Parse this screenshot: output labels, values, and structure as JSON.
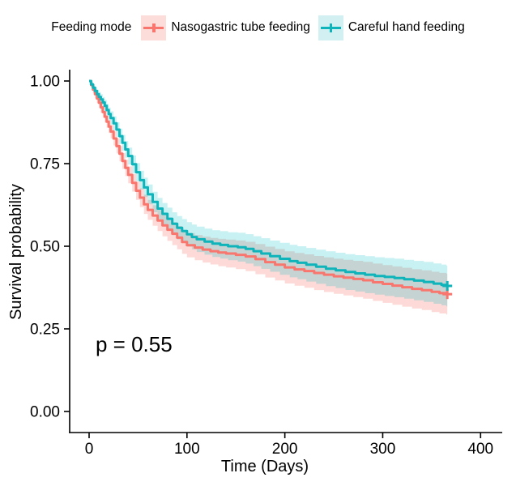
{
  "legend": {
    "title": "Feeding mode",
    "items": [
      {
        "label": "Nasogastric tube feeding",
        "color": "#F8766D",
        "key_fill": "#FCDDDA"
      },
      {
        "label": "Careful hand feeding",
        "color": "#0FB4BA",
        "key_fill": "#D2F0F2"
      }
    ]
  },
  "annotation": {
    "p_value_label": "p = 0.55"
  },
  "chart_data": {
    "type": "line",
    "subtype": "kaplan-meier-step-with-ci-ribbon",
    "title": "",
    "xlabel": "Time (Days)",
    "ylabel": "Survival probability",
    "xlim": [
      0,
      400
    ],
    "ylim": [
      0,
      1
    ],
    "grid": false,
    "legend_position": "top",
    "p_value": 0.55,
    "x_ticks": [
      {
        "v": 0,
        "label": "0"
      },
      {
        "v": 100,
        "label": "100"
      },
      {
        "v": 200,
        "label": "200"
      },
      {
        "v": 300,
        "label": "300"
      },
      {
        "v": 400,
        "label": "400"
      }
    ],
    "y_ticks": [
      {
        "v": 1.0,
        "label": "1.00"
      },
      {
        "v": 0.75,
        "label": "0.75"
      },
      {
        "v": 0.5,
        "label": "0.50"
      },
      {
        "v": 0.25,
        "label": "0.25"
      },
      {
        "v": 0.0,
        "label": "0.00"
      }
    ],
    "ci_model": {
      "halfwidth_a": 0.062,
      "halfwidth_b": 0.4,
      "t_max": 366
    },
    "series": [
      {
        "name": "Nasogastric tube feeding",
        "color": "#F8766D",
        "band_fill_rgba": "rgba(248,118,109,0.27)",
        "censor": [
          [
            366,
            0.355
          ]
        ],
        "points": [
          [
            0,
            1.0
          ],
          [
            2,
            0.988
          ],
          [
            4,
            0.974
          ],
          [
            6,
            0.96
          ],
          [
            8,
            0.947
          ],
          [
            10,
            0.934
          ],
          [
            12,
            0.92
          ],
          [
            14,
            0.906
          ],
          [
            16,
            0.892
          ],
          [
            18,
            0.877
          ],
          [
            20,
            0.862
          ],
          [
            22,
            0.847
          ],
          [
            25,
            0.826
          ],
          [
            28,
            0.803
          ],
          [
            31,
            0.78
          ],
          [
            34,
            0.758
          ],
          [
            37,
            0.737
          ],
          [
            40,
            0.716
          ],
          [
            44,
            0.692
          ],
          [
            48,
            0.668
          ],
          [
            52,
            0.647
          ],
          [
            56,
            0.627
          ],
          [
            60,
            0.61
          ],
          [
            65,
            0.593
          ],
          [
            70,
            0.578
          ],
          [
            75,
            0.563
          ],
          [
            80,
            0.55
          ],
          [
            85,
            0.538
          ],
          [
            90,
            0.526
          ],
          [
            95,
            0.513
          ],
          [
            100,
            0.503
          ],
          [
            108,
            0.496
          ],
          [
            116,
            0.49
          ],
          [
            124,
            0.485
          ],
          [
            132,
            0.481
          ],
          [
            140,
            0.478
          ],
          [
            150,
            0.474
          ],
          [
            160,
            0.469
          ],
          [
            170,
            0.461
          ],
          [
            180,
            0.452
          ],
          [
            190,
            0.444
          ],
          [
            200,
            0.436
          ],
          [
            210,
            0.43
          ],
          [
            220,
            0.425
          ],
          [
            230,
            0.419
          ],
          [
            240,
            0.414
          ],
          [
            250,
            0.409
          ],
          [
            260,
            0.405
          ],
          [
            270,
            0.401
          ],
          [
            280,
            0.397
          ],
          [
            290,
            0.391
          ],
          [
            300,
            0.386
          ],
          [
            310,
            0.381
          ],
          [
            320,
            0.376
          ],
          [
            330,
            0.371
          ],
          [
            340,
            0.367
          ],
          [
            350,
            0.362
          ],
          [
            358,
            0.358
          ],
          [
            365,
            0.355
          ]
        ]
      },
      {
        "name": "Careful hand feeding",
        "color": "#0FB4BA",
        "band_fill_rgba": "rgba(0,191,196,0.22)",
        "censor": [
          [
            366,
            0.38
          ]
        ],
        "points": [
          [
            0,
            1.0
          ],
          [
            2,
            0.99
          ],
          [
            4,
            0.98
          ],
          [
            6,
            0.97
          ],
          [
            8,
            0.96
          ],
          [
            10,
            0.952
          ],
          [
            12,
            0.944
          ],
          [
            14,
            0.935
          ],
          [
            16,
            0.925
          ],
          [
            18,
            0.912
          ],
          [
            20,
            0.9
          ],
          [
            22,
            0.888
          ],
          [
            25,
            0.872
          ],
          [
            28,
            0.853
          ],
          [
            31,
            0.833
          ],
          [
            34,
            0.813
          ],
          [
            37,
            0.793
          ],
          [
            40,
            0.773
          ],
          [
            44,
            0.748
          ],
          [
            48,
            0.724
          ],
          [
            52,
            0.7
          ],
          [
            56,
            0.678
          ],
          [
            60,
            0.657
          ],
          [
            65,
            0.634
          ],
          [
            70,
            0.614
          ],
          [
            75,
            0.598
          ],
          [
            80,
            0.583
          ],
          [
            85,
            0.568
          ],
          [
            90,
            0.556
          ],
          [
            95,
            0.546
          ],
          [
            100,
            0.536
          ],
          [
            105,
            0.528
          ],
          [
            110,
            0.521
          ],
          [
            118,
            0.514
          ],
          [
            126,
            0.508
          ],
          [
            134,
            0.504
          ],
          [
            142,
            0.5
          ],
          [
            152,
            0.497
          ],
          [
            160,
            0.492
          ],
          [
            168,
            0.485
          ],
          [
            176,
            0.478
          ],
          [
            185,
            0.47
          ],
          [
            195,
            0.462
          ],
          [
            205,
            0.455
          ],
          [
            213,
            0.45
          ],
          [
            222,
            0.444
          ],
          [
            232,
            0.438
          ],
          [
            242,
            0.432
          ],
          [
            252,
            0.427
          ],
          [
            262,
            0.422
          ],
          [
            272,
            0.418
          ],
          [
            282,
            0.414
          ],
          [
            292,
            0.41
          ],
          [
            302,
            0.407
          ],
          [
            312,
            0.404
          ],
          [
            322,
            0.4
          ],
          [
            332,
            0.396
          ],
          [
            342,
            0.392
          ],
          [
            352,
            0.387
          ],
          [
            360,
            0.383
          ],
          [
            365,
            0.38
          ]
        ]
      }
    ]
  }
}
